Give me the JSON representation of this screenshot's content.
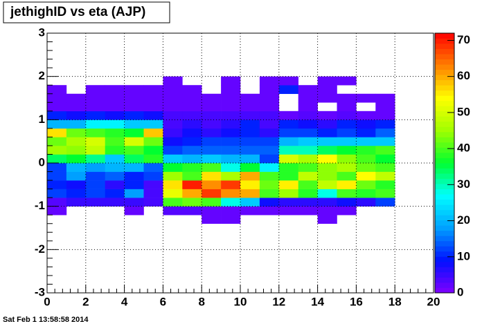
{
  "chart_data": {
    "type": "heatmap",
    "title": "jethighID vs eta (AJP)",
    "footer": "Sat Feb  1 13:58:58 2014",
    "xlim": [
      0,
      20
    ],
    "xticks": [
      0,
      2,
      4,
      6,
      8,
      10,
      12,
      14,
      16,
      18,
      20
    ],
    "ylim": [
      -3,
      3
    ],
    "yticks": [
      -3,
      -2,
      -1,
      0,
      1,
      2,
      3
    ],
    "zlim": [
      0,
      72
    ],
    "zticks": [
      0,
      10,
      20,
      30,
      40,
      50,
      60,
      70
    ],
    "grid": true,
    "colorscale": [
      "#8000ff",
      "#0010ff",
      "#00a0ff",
      "#00ffff",
      "#00ff30",
      "#a0ff00",
      "#ffff00",
      "#ff8000",
      "#ff0000"
    ],
    "xbins": [
      0,
      1,
      2,
      3,
      4,
      5,
      6,
      7,
      8,
      9,
      10,
      11,
      12,
      13,
      14,
      15,
      16,
      17,
      18
    ],
    "ybins": [
      -1.4,
      -1.2,
      -1.0,
      -0.8,
      -0.6,
      -0.4,
      -0.2,
      0,
      0.2,
      0.4,
      0.6,
      0.8,
      1.0,
      1.2,
      1.4,
      1.6,
      1.8,
      2.0
    ],
    "values": [
      [
        null,
        null,
        null,
        null,
        null,
        null,
        null,
        null,
        2,
        2,
        null,
        null,
        null,
        null,
        2,
        null,
        null,
        null
      ],
      [
        2,
        null,
        null,
        null,
        2,
        null,
        3,
        3,
        2,
        2,
        2,
        2,
        2,
        2,
        2,
        2,
        null,
        null
      ],
      [
        3,
        5,
        5,
        5,
        5,
        4,
        40,
        42,
        40,
        28,
        22,
        8,
        6,
        6,
        6,
        8,
        6,
        12
      ],
      [
        12,
        10,
        12,
        10,
        18,
        4,
        52,
        60,
        68,
        62,
        60,
        40,
        45,
        38,
        28,
        40,
        38,
        40
      ],
      [
        10,
        8,
        12,
        6,
        10,
        4,
        56,
        70,
        62,
        68,
        55,
        42,
        55,
        40,
        48,
        55,
        42,
        38
      ],
      [
        12,
        18,
        12,
        14,
        10,
        12,
        45,
        40,
        56,
        46,
        60,
        40,
        38,
        48,
        44,
        40,
        54,
        48
      ],
      [
        12,
        20,
        18,
        20,
        20,
        14,
        36,
        38,
        40,
        28,
        36,
        26,
        38,
        40,
        44,
        46,
        42,
        40
      ],
      [
        34,
        36,
        32,
        22,
        34,
        38,
        22,
        20,
        22,
        20,
        20,
        12,
        50,
        46,
        54,
        44,
        40,
        36
      ],
      [
        45,
        44,
        48,
        38,
        40,
        36,
        12,
        14,
        14,
        14,
        14,
        14,
        30,
        30,
        34,
        36,
        38,
        40
      ],
      [
        42,
        46,
        50,
        40,
        50,
        42,
        8,
        10,
        12,
        12,
        12,
        12,
        20,
        22,
        22,
        22,
        22,
        22
      ],
      [
        56,
        42,
        40,
        38,
        36,
        58,
        5,
        8,
        6,
        8,
        10,
        6,
        12,
        12,
        10,
        12,
        10,
        14
      ],
      [
        20,
        20,
        26,
        26,
        22,
        22,
        4,
        6,
        4,
        6,
        10,
        4,
        10,
        8,
        6,
        10,
        8,
        10
      ],
      [
        10,
        8,
        10,
        8,
        10,
        8,
        4,
        4,
        4,
        4,
        4,
        4,
        2,
        3,
        2,
        3,
        2,
        2
      ],
      [
        2,
        2,
        2,
        2,
        2,
        2,
        2,
        2,
        2,
        2,
        2,
        2,
        null,
        2,
        null,
        2,
        null,
        2
      ],
      [
        2,
        2,
        2,
        2,
        2,
        2,
        2,
        2,
        2,
        2,
        2,
        2,
        null,
        2,
        2,
        2,
        2,
        2
      ],
      [
        2,
        null,
        2,
        2,
        2,
        2,
        2,
        2,
        null,
        2,
        null,
        2,
        10,
        2,
        2,
        null,
        null,
        null
      ],
      [
        null,
        null,
        null,
        null,
        null,
        null,
        2,
        null,
        null,
        2,
        null,
        2,
        2,
        null,
        2,
        2,
        null,
        null
      ]
    ]
  }
}
